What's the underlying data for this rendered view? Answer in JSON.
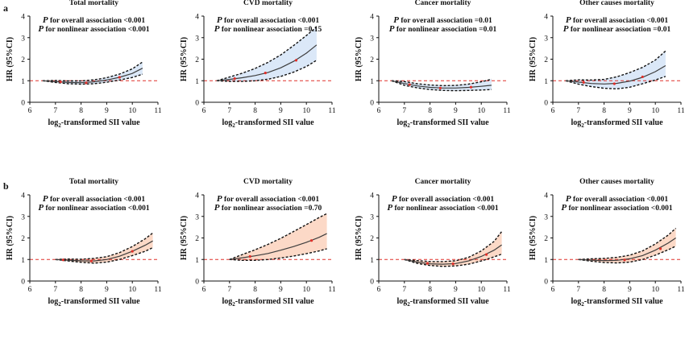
{
  "row_labels": [
    "a",
    "b"
  ],
  "colors": {
    "row_a_band": "#dbe8f8",
    "row_b_band": "#fcd9c7",
    "curve": "#3d3d3d",
    "ci_border": "#111111",
    "reference_line": "#e0302a",
    "knot_marker": "#e0302a"
  },
  "chart_data": [
    {
      "type": "line",
      "row": "a",
      "title": "Total mortality",
      "xlabel_prefix": "log",
      "xlabel_sub": "2",
      "xlabel_suffix": "-transformed SII value",
      "ylabel": "HR (95%CI)",
      "annotation": [
        {
          "p": "P",
          "text": " for overall association <0.001"
        },
        {
          "p": "P",
          "text": " for nonlinear association <0.001"
        }
      ],
      "xlim": [
        6,
        11
      ],
      "ylim": [
        0,
        4
      ],
      "xticks": [
        6,
        7,
        8,
        9,
        10,
        11
      ],
      "yticks": [
        0,
        1,
        2,
        3,
        4
      ],
      "reference_y": 1,
      "x": [
        6.5,
        7.0,
        7.5,
        8.0,
        8.5,
        9.0,
        9.5,
        10.0,
        10.4
      ],
      "hr": [
        1.0,
        0.96,
        0.92,
        0.91,
        0.95,
        1.03,
        1.16,
        1.34,
        1.58
      ],
      "lower": [
        1.0,
        0.92,
        0.86,
        0.84,
        0.86,
        0.93,
        1.03,
        1.15,
        1.3
      ],
      "upper": [
        1.0,
        1.01,
        0.99,
        0.99,
        1.04,
        1.14,
        1.31,
        1.55,
        1.87
      ],
      "knots": [
        [
          7.2,
          0.95
        ],
        [
          8.2,
          0.9
        ],
        [
          9.5,
          1.16
        ]
      ]
    },
    {
      "type": "line",
      "row": "a",
      "title": "CVD mortality",
      "xlabel_prefix": "log",
      "xlabel_sub": "2",
      "xlabel_suffix": "-transformed SII value",
      "ylabel": "HR (95%CI)",
      "annotation": [
        {
          "p": "P",
          "text": " for overall association <0.001"
        },
        {
          "p": "P",
          "text": " for nonlinear association =0.15"
        }
      ],
      "xlim": [
        6,
        11
      ],
      "ylim": [
        0,
        4
      ],
      "xticks": [
        6,
        7,
        8,
        9,
        10,
        11
      ],
      "yticks": [
        0,
        1,
        2,
        3,
        4
      ],
      "reference_y": 1,
      "x": [
        6.5,
        7.0,
        7.5,
        8.0,
        8.5,
        9.0,
        9.5,
        10.0,
        10.4
      ],
      "hr": [
        1.0,
        1.06,
        1.14,
        1.24,
        1.38,
        1.6,
        1.9,
        2.28,
        2.66
      ],
      "lower": [
        1.0,
        0.97,
        0.97,
        1.0,
        1.07,
        1.2,
        1.4,
        1.66,
        1.95
      ],
      "upper": [
        1.0,
        1.17,
        1.35,
        1.57,
        1.85,
        2.2,
        2.63,
        3.1,
        3.5
      ],
      "knots": [
        [
          7.2,
          1.1
        ],
        [
          8.4,
          1.36
        ],
        [
          9.6,
          1.95
        ]
      ]
    },
    {
      "type": "line",
      "row": "a",
      "title": "Cancer mortality",
      "xlabel_prefix": "log",
      "xlabel_sub": "2",
      "xlabel_suffix": "-transformed SII value",
      "ylabel": "HR (95%CI)",
      "annotation": [
        {
          "p": "P",
          "text": " for overall association =0.01"
        },
        {
          "p": "P",
          "text": " for nonlinear association =0.01"
        }
      ],
      "xlim": [
        6,
        11
      ],
      "ylim": [
        0,
        4
      ],
      "xticks": [
        6,
        7,
        8,
        9,
        10,
        11
      ],
      "yticks": [
        0,
        1,
        2,
        3,
        4
      ],
      "reference_y": 1,
      "x": [
        6.5,
        7.0,
        7.5,
        8.0,
        8.5,
        9.0,
        9.5,
        10.0,
        10.4
      ],
      "hr": [
        1.0,
        0.87,
        0.76,
        0.69,
        0.66,
        0.66,
        0.69,
        0.74,
        0.79
      ],
      "lower": [
        1.0,
        0.79,
        0.67,
        0.59,
        0.55,
        0.54,
        0.55,
        0.57,
        0.59
      ],
      "upper": [
        1.0,
        0.96,
        0.86,
        0.8,
        0.77,
        0.78,
        0.84,
        0.95,
        1.07
      ],
      "knots": [
        [
          7.2,
          0.82
        ],
        [
          8.4,
          0.66
        ],
        [
          9.6,
          0.7
        ]
      ]
    },
    {
      "type": "line",
      "row": "a",
      "title": "Other causes mortality",
      "xlabel_prefix": "log",
      "xlabel_sub": "2",
      "xlabel_suffix": "-transformed SII value",
      "ylabel": "HR (95%CI)",
      "annotation": [
        {
          "p": "P",
          "text": " for overall association <0.001"
        },
        {
          "p": "P",
          "text": " for nonlinear association =0.01"
        }
      ],
      "xlim": [
        6,
        11
      ],
      "ylim": [
        0,
        4
      ],
      "xticks": [
        6,
        7,
        8,
        9,
        10,
        11
      ],
      "yticks": [
        0,
        1,
        2,
        3,
        4
      ],
      "reference_y": 1,
      "x": [
        6.5,
        7.0,
        7.5,
        8.0,
        8.5,
        9.0,
        9.5,
        10.0,
        10.4
      ],
      "hr": [
        1.0,
        0.94,
        0.87,
        0.85,
        0.88,
        0.98,
        1.16,
        1.42,
        1.7
      ],
      "lower": [
        1.0,
        0.84,
        0.73,
        0.65,
        0.62,
        0.7,
        0.86,
        1.03,
        1.2
      ],
      "upper": [
        1.0,
        1.04,
        1.03,
        1.06,
        1.18,
        1.38,
        1.62,
        1.96,
        2.38
      ],
      "knots": [
        [
          7.2,
          0.92
        ],
        [
          8.4,
          0.86
        ],
        [
          9.5,
          1.18
        ]
      ]
    },
    {
      "type": "line",
      "row": "b",
      "title": "Total mortality",
      "xlabel_prefix": "log",
      "xlabel_sub": "2",
      "xlabel_suffix": "-transformed SII value",
      "ylabel": "HR (95%CI)",
      "annotation": [
        {
          "p": "P",
          "text": " for overall association <0.001"
        },
        {
          "p": "P",
          "text": " for nonlinear association <0.001"
        }
      ],
      "xlim": [
        6,
        11
      ],
      "ylim": [
        0,
        4
      ],
      "xticks": [
        6,
        7,
        8,
        9,
        10,
        11
      ],
      "yticks": [
        0,
        1,
        2,
        3,
        4
      ],
      "reference_y": 1,
      "x": [
        7.0,
        7.5,
        8.0,
        8.5,
        9.0,
        9.5,
        10.0,
        10.5,
        10.8
      ],
      "hr": [
        1.0,
        0.97,
        0.94,
        0.93,
        1.0,
        1.15,
        1.38,
        1.66,
        1.86
      ],
      "lower": [
        1.0,
        0.93,
        0.87,
        0.83,
        0.88,
        1.0,
        1.18,
        1.38,
        1.55
      ],
      "upper": [
        1.0,
        1.02,
        1.01,
        1.05,
        1.13,
        1.32,
        1.6,
        1.96,
        2.23
      ],
      "knots": [
        [
          7.3,
          0.98
        ],
        [
          8.4,
          0.93
        ],
        [
          10.0,
          1.38
        ]
      ]
    },
    {
      "type": "line",
      "row": "b",
      "title": "CVD mortality",
      "xlabel_prefix": "log",
      "xlabel_sub": "2",
      "xlabel_suffix": "-transformed SII value",
      "ylabel": "HR (95%CI)",
      "annotation": [
        {
          "p": "P",
          "text": " for overall association <0.001"
        },
        {
          "p": "P",
          "text": " for nonlinear association =0.70"
        }
      ],
      "xlim": [
        6,
        11
      ],
      "ylim": [
        0,
        4
      ],
      "xticks": [
        6,
        7,
        8,
        9,
        10,
        11
      ],
      "yticks": [
        0,
        1,
        2,
        3,
        4
      ],
      "reference_y": 1,
      "x": [
        7.0,
        7.5,
        8.0,
        8.5,
        9.0,
        9.5,
        10.0,
        10.5,
        10.8
      ],
      "hr": [
        1.0,
        1.08,
        1.17,
        1.28,
        1.43,
        1.6,
        1.8,
        2.03,
        2.2
      ],
      "lower": [
        1.0,
        0.96,
        0.96,
        1.0,
        1.07,
        1.16,
        1.27,
        1.4,
        1.5
      ],
      "upper": [
        1.0,
        1.23,
        1.45,
        1.7,
        1.98,
        2.3,
        2.62,
        2.95,
        3.13
      ],
      "knots": [
        [
          7.8,
          1.14
        ],
        [
          10.2,
          1.88
        ]
      ]
    },
    {
      "type": "line",
      "row": "b",
      "title": "Cancer mortality",
      "xlabel_prefix": "log",
      "xlabel_sub": "2",
      "xlabel_suffix": "-transformed SII value",
      "ylabel": "HR (95%CI)",
      "annotation": [
        {
          "p": "P",
          "text": " for overall association <0.001"
        },
        {
          "p": "P",
          "text": " for nonlinear association <0.001"
        }
      ],
      "xlim": [
        6,
        11
      ],
      "ylim": [
        0,
        4
      ],
      "xticks": [
        6,
        7,
        8,
        9,
        10,
        11
      ],
      "yticks": [
        0,
        1,
        2,
        3,
        4
      ],
      "reference_y": 1,
      "x": [
        7.0,
        7.5,
        8.0,
        8.5,
        9.0,
        9.5,
        10.0,
        10.5,
        10.8
      ],
      "hr": [
        1.0,
        0.88,
        0.8,
        0.78,
        0.81,
        0.93,
        1.14,
        1.43,
        1.68
      ],
      "lower": [
        1.0,
        0.82,
        0.72,
        0.68,
        0.7,
        0.78,
        0.93,
        1.12,
        1.25
      ],
      "upper": [
        1.0,
        0.95,
        0.9,
        0.9,
        0.94,
        1.1,
        1.4,
        1.84,
        2.3
      ],
      "knots": [
        [
          7.9,
          0.82
        ],
        [
          8.9,
          0.8
        ],
        [
          10.2,
          1.23
        ]
      ]
    },
    {
      "type": "line",
      "row": "b",
      "title": "Other causes mortality",
      "xlabel_prefix": "log",
      "xlabel_sub": "2",
      "xlabel_suffix": "-transformed SII value",
      "ylabel": "HR (95%CI)",
      "annotation": [
        {
          "p": "P",
          "text": " for overall association <0.001"
        },
        {
          "p": "P",
          "text": " for nonlinear association <0.001"
        }
      ],
      "xlim": [
        6,
        11
      ],
      "ylim": [
        0,
        4
      ],
      "xticks": [
        6,
        7,
        8,
        9,
        10,
        11
      ],
      "yticks": [
        0,
        1,
        2,
        3,
        4
      ],
      "reference_y": 1,
      "x": [
        7.0,
        7.5,
        8.0,
        8.5,
        9.0,
        9.5,
        10.0,
        10.5,
        10.8
      ],
      "hr": [
        1.0,
        0.97,
        0.95,
        0.96,
        1.03,
        1.18,
        1.43,
        1.76,
        2.0
      ],
      "lower": [
        1.0,
        0.92,
        0.86,
        0.84,
        0.88,
        1.0,
        1.2,
        1.45,
        1.62
      ],
      "upper": [
        1.0,
        1.03,
        1.05,
        1.1,
        1.2,
        1.4,
        1.72,
        2.13,
        2.45
      ],
      "knots": [
        [
          8.8,
          0.98
        ],
        [
          10.2,
          1.5
        ]
      ]
    }
  ]
}
